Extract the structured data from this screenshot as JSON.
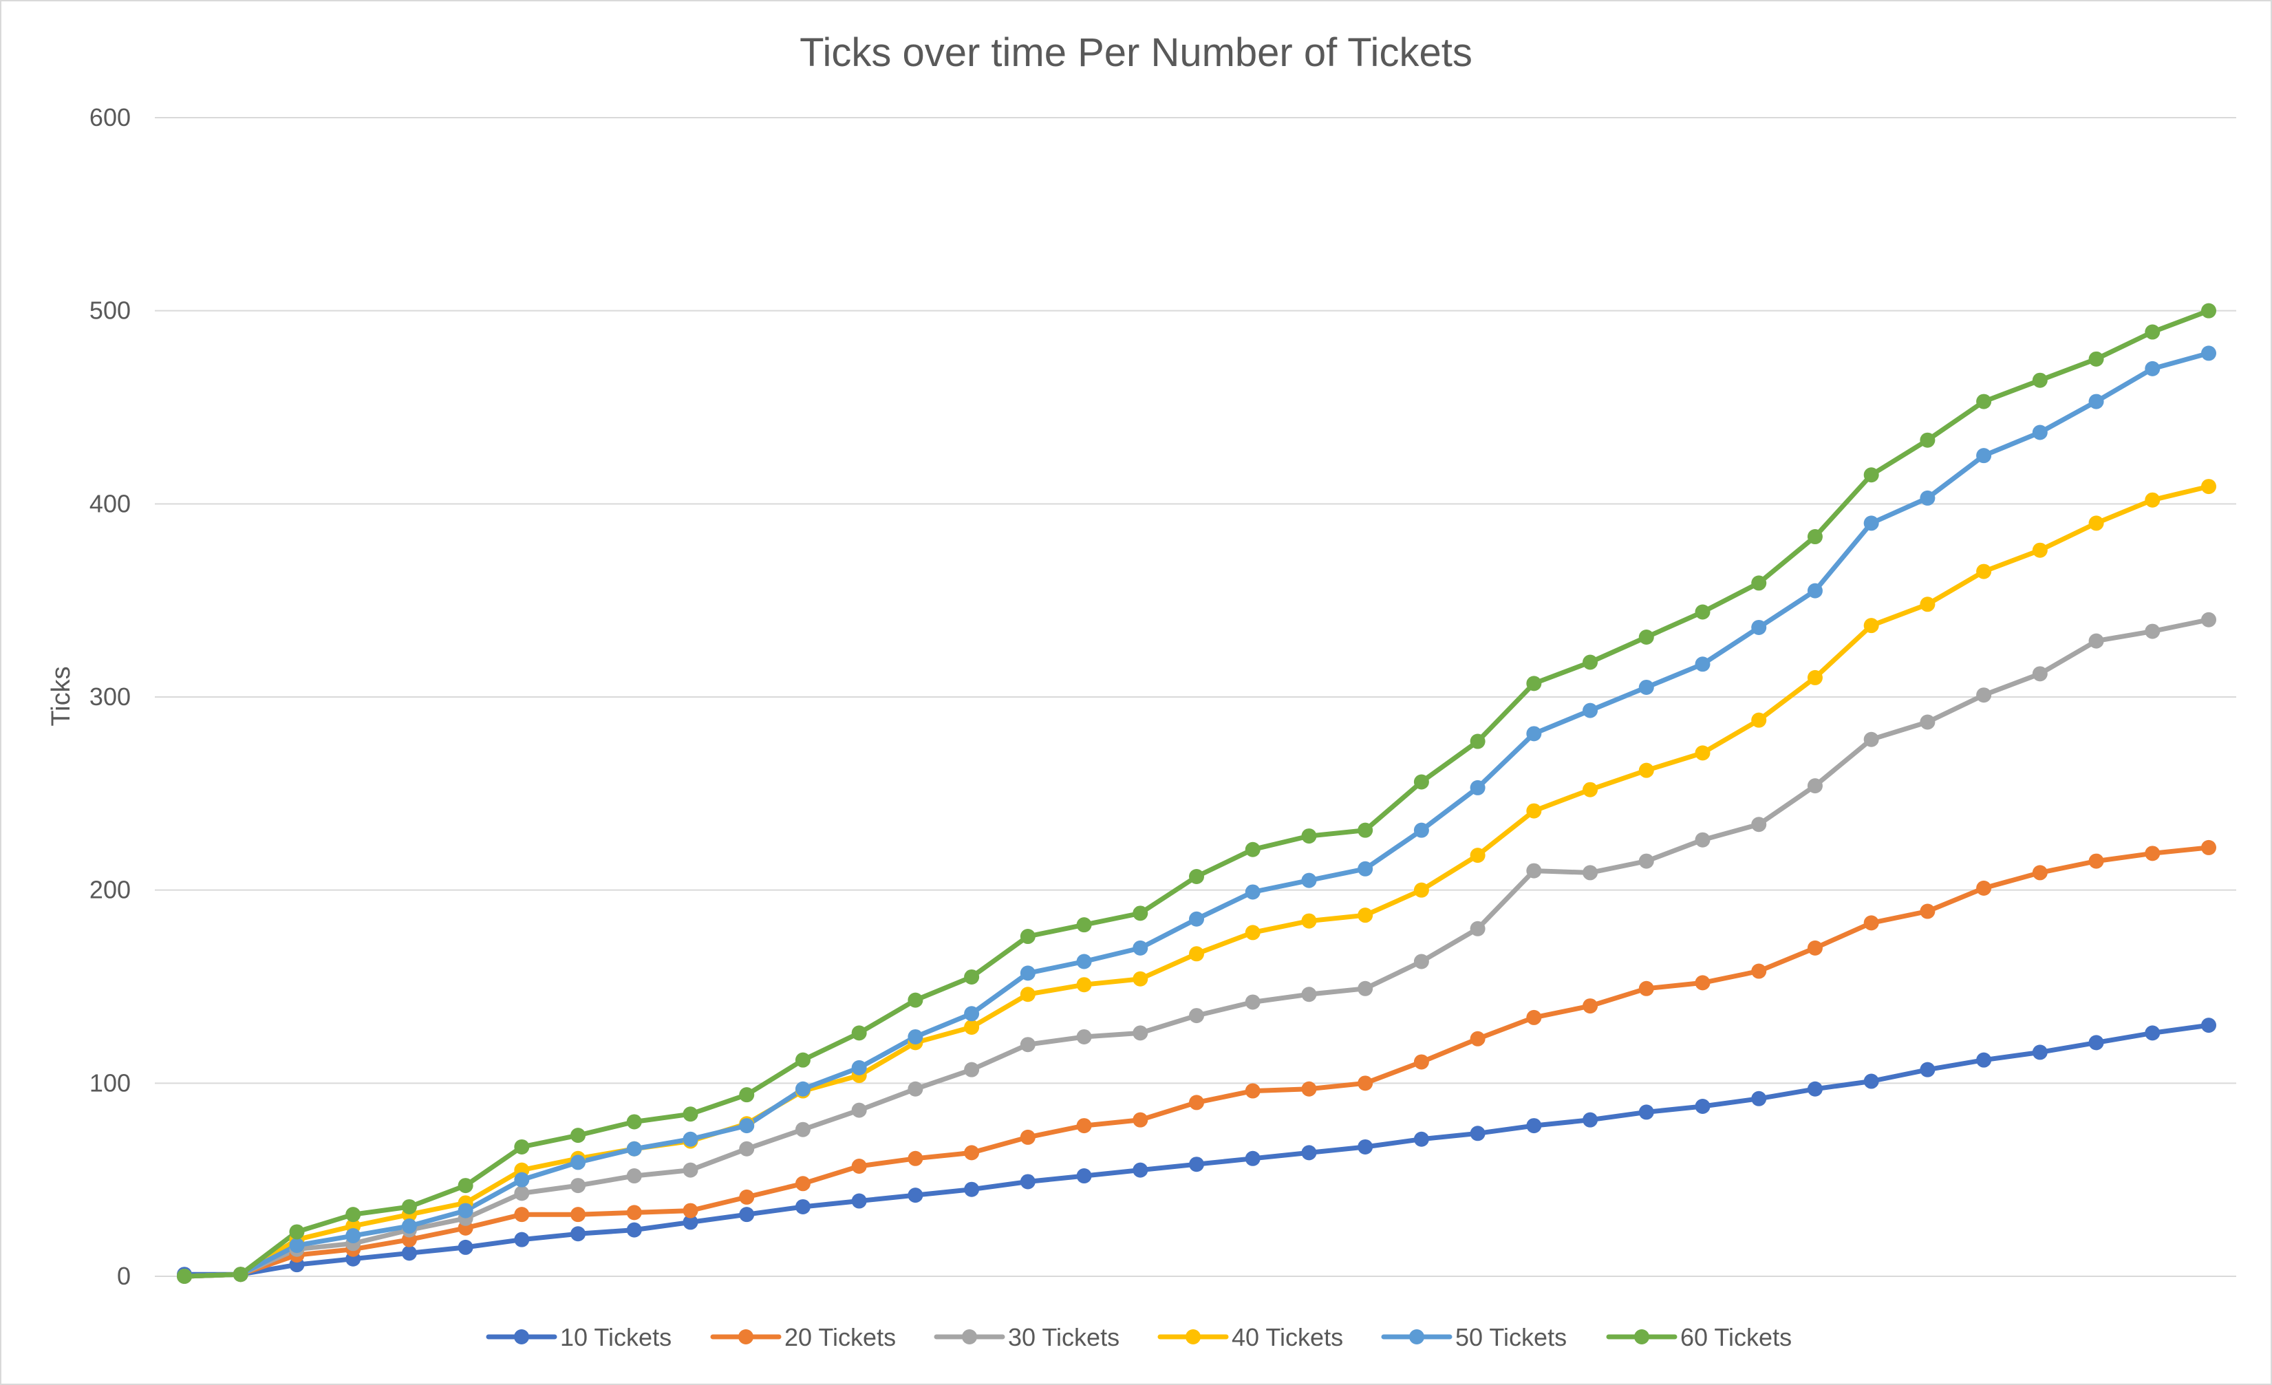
{
  "chart_data": {
    "type": "line",
    "title": "Ticks over time Per Number of Tickets",
    "xlabel": "",
    "ylabel": "Ticks",
    "ylim": [
      0,
      600
    ],
    "yticks": [
      0,
      100,
      200,
      300,
      400,
      500,
      600
    ],
    "grid": true,
    "legend_position": "bottom",
    "x": [
      1,
      2,
      3,
      4,
      5,
      6,
      7,
      8,
      9,
      10,
      11,
      12,
      13,
      14,
      15,
      16,
      17,
      18,
      19,
      20,
      21,
      22,
      23,
      24,
      25,
      26,
      27,
      28,
      29,
      30,
      31,
      32,
      33,
      34,
      35,
      36,
      37
    ],
    "series": [
      {
        "name": "10 Tickets",
        "color": "#4472c4",
        "values": [
          1,
          1,
          6,
          9,
          12,
          15,
          19,
          22,
          24,
          28,
          32,
          36,
          39,
          42,
          45,
          49,
          52,
          55,
          58,
          61,
          64,
          67,
          71,
          74,
          78,
          81,
          85,
          88,
          92,
          97,
          101,
          107,
          112,
          116,
          121,
          126,
          130
        ]
      },
      {
        "name": "20 Tickets",
        "color": "#ed7d31",
        "values": [
          0,
          1,
          11,
          14,
          19,
          25,
          32,
          32,
          33,
          34,
          41,
          48,
          57,
          61,
          64,
          72,
          78,
          81,
          90,
          96,
          97,
          100,
          111,
          123,
          134,
          140,
          149,
          152,
          158,
          170,
          183,
          189,
          201,
          209,
          215,
          219,
          222
        ]
      },
      {
        "name": "30 Tickets",
        "color": "#a5a5a5",
        "values": [
          0,
          1,
          14,
          17,
          24,
          30,
          43,
          47,
          52,
          55,
          66,
          76,
          86,
          97,
          107,
          120,
          124,
          126,
          135,
          142,
          146,
          149,
          163,
          180,
          210,
          209,
          215,
          226,
          234,
          254,
          278,
          287,
          301,
          312,
          329,
          334,
          340
        ]
      },
      {
        "name": "40 Tickets",
        "color": "#ffc000",
        "values": [
          0,
          1,
          19,
          26,
          32,
          38,
          55,
          61,
          66,
          70,
          79,
          96,
          104,
          121,
          129,
          146,
          151,
          154,
          167,
          178,
          184,
          187,
          200,
          218,
          241,
          252,
          262,
          271,
          288,
          310,
          337,
          348,
          365,
          376,
          390,
          402,
          409
        ]
      },
      {
        "name": "50 Tickets",
        "color": "#5b9bd5",
        "values": [
          0,
          1,
          16,
          21,
          26,
          34,
          50,
          59,
          66,
          71,
          78,
          97,
          108,
          124,
          136,
          157,
          163,
          170,
          185,
          199,
          205,
          211,
          231,
          253,
          281,
          293,
          305,
          317,
          336,
          355,
          390,
          403,
          425,
          437,
          453,
          470,
          478
        ]
      },
      {
        "name": "60 Tickets",
        "color": "#70ad47",
        "values": [
          0,
          1,
          23,
          32,
          36,
          47,
          67,
          73,
          80,
          84,
          94,
          112,
          126,
          143,
          155,
          176,
          182,
          188,
          207,
          221,
          228,
          231,
          256,
          277,
          307,
          318,
          331,
          344,
          359,
          383,
          415,
          433,
          453,
          464,
          475,
          489,
          500
        ]
      }
    ]
  }
}
